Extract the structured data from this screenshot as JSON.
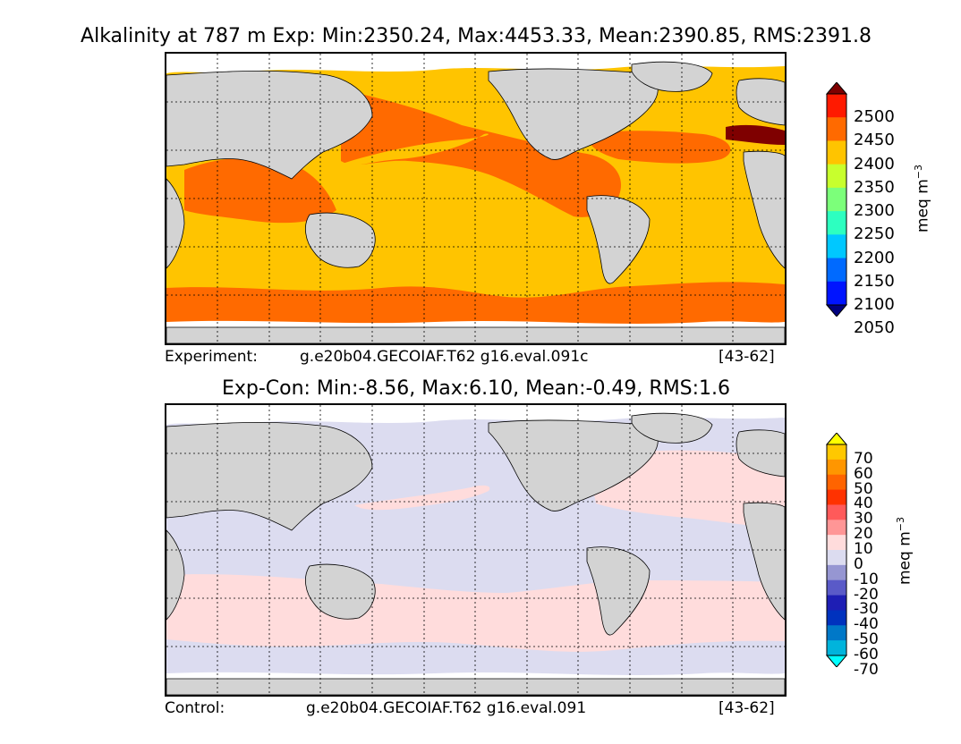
{
  "top": {
    "title": "Alkalinity at 787 m Exp: Min:2350.24, Max:4453.33, Mean:2390.85, RMS:2391.8",
    "caption_left": "Experiment:",
    "caption_case": "g.e20b04.GECOIAF.T62 g16.eval.091c",
    "caption_years": "[43-62]",
    "colorbar": {
      "unit": "meq m",
      "unit_exp": "−3",
      "ticks": [
        "2500",
        "2450",
        "2400",
        "2350",
        "2300",
        "2250",
        "2200",
        "2150",
        "2100",
        "2050"
      ],
      "colors": [
        "#7f0000",
        "#ff1a00",
        "#ff6a00",
        "#ffc400",
        "#c8ff2d",
        "#7cff7a",
        "#2dffc0",
        "#00c8ff",
        "#006aff",
        "#0014ff",
        "#00007f"
      ]
    }
  },
  "bottom": {
    "title": "Exp-Con: Min:-8.56, Max:6.10, Mean:-0.49, RMS:1.6",
    "caption_left": "Control:",
    "caption_case": "g.e20b04.GECOIAF.T62 g16.eval.091",
    "caption_years": "[43-62]",
    "colorbar": {
      "unit": "meq m",
      "unit_exp": "−3",
      "ticks": [
        "70",
        "60",
        "50",
        "40",
        "30",
        "20",
        "10",
        "0",
        "-10",
        "-20",
        "-30",
        "-40",
        "-50",
        "-60",
        "-70"
      ],
      "colors": [
        "#ffff00",
        "#ffc800",
        "#ff9600",
        "#ff6400",
        "#ff3200",
        "#ff5a5a",
        "#ff9696",
        "#ffdcdc",
        "#dcdcf0",
        "#9696d2",
        "#5a5ac8",
        "#1e1eb4",
        "#0032be",
        "#0078c8",
        "#00b4dc",
        "#00ffff"
      ]
    }
  },
  "colors": {
    "land": "#d3d3d3",
    "ice": "#ffffff",
    "top_orange": "#ff6a00",
    "top_yellow": "#ffc400",
    "top_darkred": "#7f0000",
    "diff_pink": "#ffdcdc",
    "diff_lavender": "#dcdcf0"
  }
}
